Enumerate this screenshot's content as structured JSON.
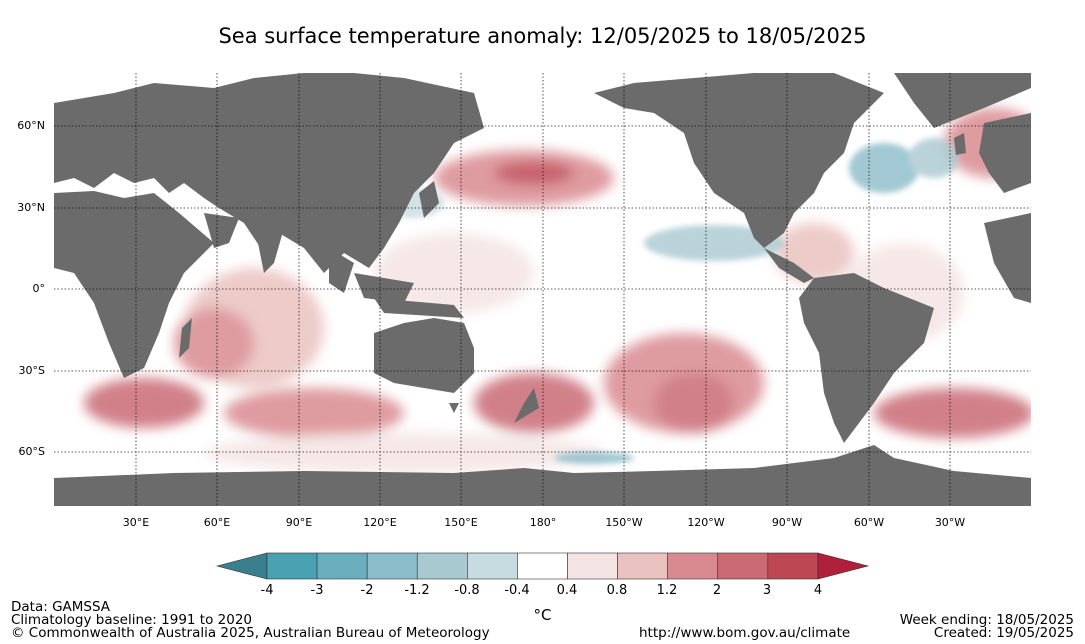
{
  "title": "Sea surface temperature anomaly: 12/05/2025 to 18/05/2025",
  "lat_labels": [
    "60°N",
    "30°N",
    "0°",
    "30°S",
    "60°S"
  ],
  "lon_labels": [
    "30°E",
    "60°E",
    "90°E",
    "120°E",
    "150°E",
    "180°",
    "150°W",
    "120°W",
    "90°W",
    "60°W",
    "30°W"
  ],
  "colorbar": {
    "ticks": [
      "-4",
      "-3",
      "-2",
      "-1.2",
      "-0.8",
      "-0.4",
      "0.4",
      "0.8",
      "1.2",
      "2",
      "3",
      "4"
    ],
    "unit": "°C",
    "colors": [
      "#3a7f8e",
      "#4aa1b2",
      "#6aaebd",
      "#8bbcc9",
      "#a9c9d0",
      "#c7dce1",
      "#ffffff",
      "#f4e4e3",
      "#e9c2bf",
      "#d98a90",
      "#c96a74",
      "#be4754",
      "#b0203a"
    ]
  },
  "land_color": "#6b6b6b",
  "footer": {
    "data": "Data: GAMSSA",
    "baseline": "Climatology baseline: 1991 to 2020",
    "copyright": "© Commonwealth of Australia 2025, Australian Bureau of Meteorology",
    "url": "http://www.bom.gov.au/climate",
    "week_ending": "Week ending: 18/05/2025",
    "created": "Created: 19/05/2025"
  }
}
